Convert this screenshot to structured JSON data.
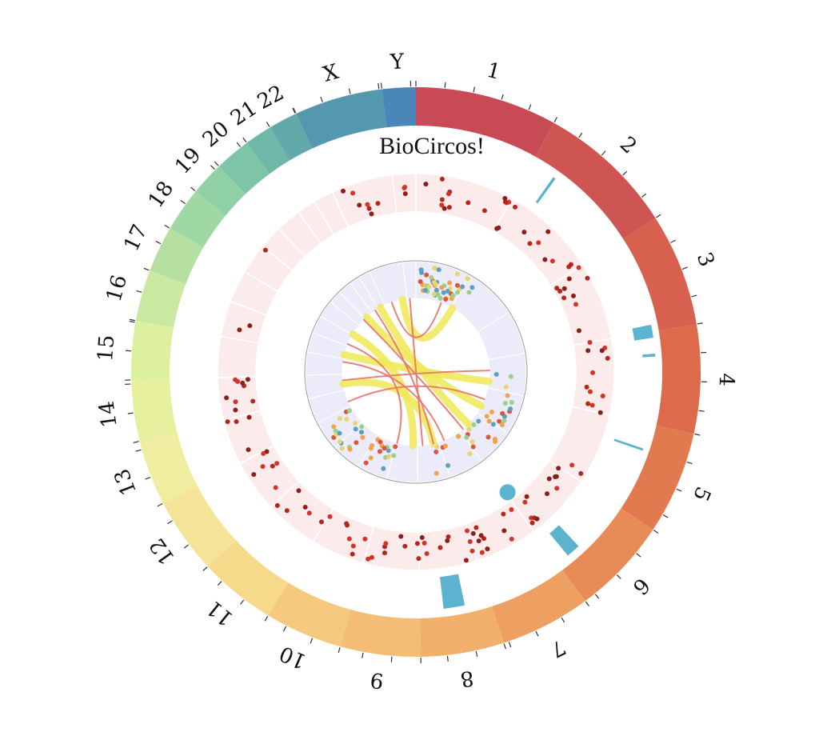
{
  "title": "BioCircos!",
  "chromosomes": [
    {
      "name": "1",
      "color": "#c84a55"
    },
    {
      "name": "2",
      "color": "#cf5552"
    },
    {
      "name": "3",
      "color": "#d7604e"
    },
    {
      "name": "4",
      "color": "#dc6a4b"
    },
    {
      "name": "5",
      "color": "#e27a50"
    },
    {
      "name": "6",
      "color": "#e88b57"
    },
    {
      "name": "7",
      "color": "#eda061"
    },
    {
      "name": "8",
      "color": "#f1b06b"
    },
    {
      "name": "9",
      "color": "#f3bd75"
    },
    {
      "name": "10",
      "color": "#f5ca80"
    },
    {
      "name": "11",
      "color": "#f7d98c"
    },
    {
      "name": "12",
      "color": "#f5e498"
    },
    {
      "name": "13",
      "color": "#efeda0"
    },
    {
      "name": "14",
      "color": "#e7f09e"
    },
    {
      "name": "15",
      "color": "#dcf0a0"
    },
    {
      "name": "16",
      "color": "#cbe8a0"
    },
    {
      "name": "17",
      "color": "#b6e0a2"
    },
    {
      "name": "18",
      "color": "#a0d8a4"
    },
    {
      "name": "19",
      "color": "#8fd0a5"
    },
    {
      "name": "20",
      "color": "#7ec4a6"
    },
    {
      "name": "21",
      "color": "#6fb8a8"
    },
    {
      "name": "22",
      "color": "#62aaaa"
    },
    {
      "name": "X",
      "color": "#5498b0"
    },
    {
      "name": "Y",
      "color": "#4a86b8"
    }
  ],
  "colors": {
    "outer_track_bg": "#fbebeb",
    "inner_track_bg": "#ebebf9",
    "bar_color": "#5bb3d0",
    "link_red": "#e8736a",
    "link_yellow": "#efe95e",
    "snp_reds": [
      "#d63228",
      "#b5261f",
      "#8c1f1a"
    ],
    "snp_mixed": [
      "#f4a24a",
      "#5b9fc4",
      "#9ccf8c",
      "#e8d66b",
      "#d9573f"
    ]
  },
  "icons": {
    "chart": "circos-plot"
  }
}
